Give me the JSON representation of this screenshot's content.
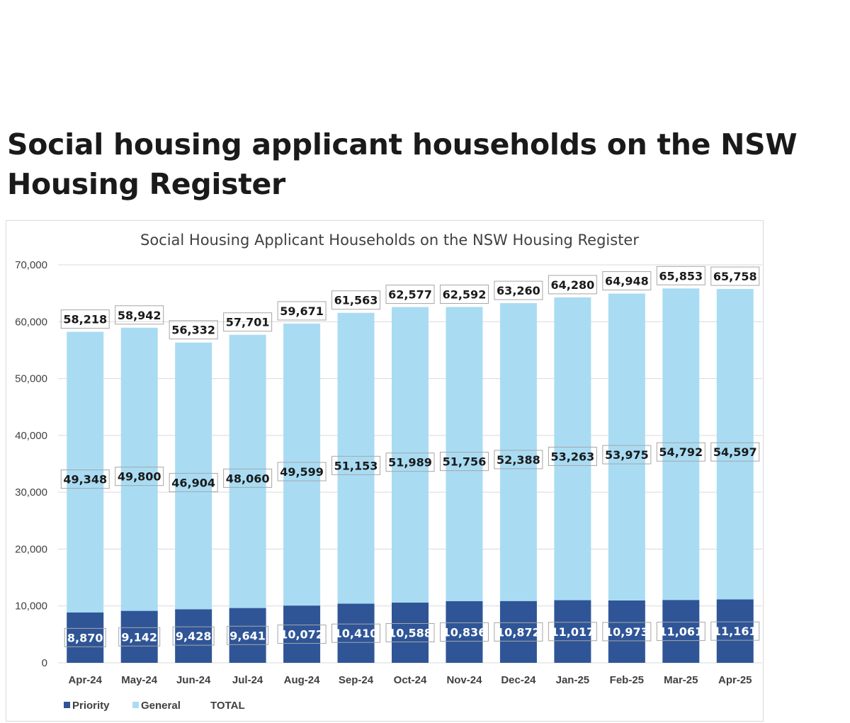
{
  "page": {
    "heading": "Social housing applicant households on the NSW Housing Register"
  },
  "chart_data": {
    "type": "bar",
    "stacked": true,
    "title": "Social Housing Applicant Households on the NSW Housing Register",
    "categories": [
      "Apr-24",
      "May-24",
      "Jun-24",
      "Jul-24",
      "Aug-24",
      "Sep-24",
      "Oct-24",
      "Nov-24",
      "Dec-24",
      "Jan-25",
      "Feb-25",
      "Mar-25",
      "Apr-25"
    ],
    "series": [
      {
        "name": "Priority",
        "color": "#2f5597",
        "values": [
          8870,
          9142,
          9428,
          9641,
          10072,
          10410,
          10588,
          10836,
          10872,
          11017,
          10973,
          11061,
          11161
        ]
      },
      {
        "name": "General",
        "color": "#a9dcf3",
        "values": [
          49348,
          49800,
          46904,
          48060,
          49599,
          51153,
          51989,
          51756,
          52388,
          53263,
          53975,
          54792,
          54597
        ]
      },
      {
        "name": "TOTAL",
        "values": [
          58218,
          58942,
          56332,
          57701,
          59671,
          61563,
          62577,
          62592,
          63260,
          64280,
          64948,
          65853,
          65758
        ]
      }
    ],
    "yticks": [
      "0",
      "10,000",
      "20,000",
      "30,000",
      "40,000",
      "50,000",
      "60,000",
      "70,000"
    ],
    "ylim": [
      0,
      70000
    ],
    "grid": true,
    "legend_position": "bottom-left",
    "xlabel": "",
    "ylabel": ""
  }
}
